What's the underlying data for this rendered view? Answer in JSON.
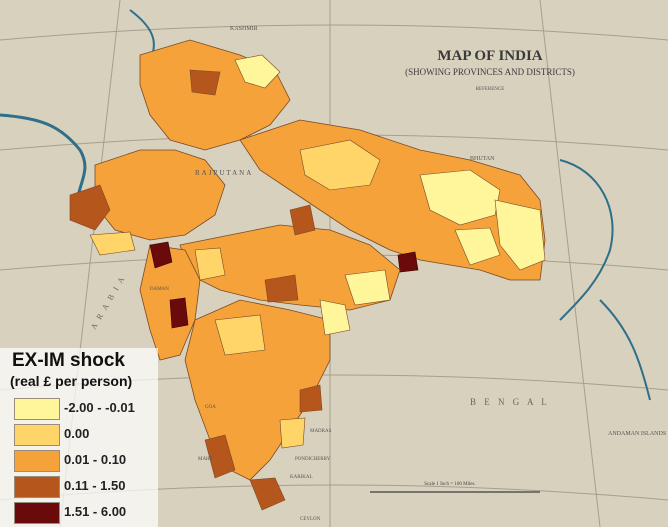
{
  "map": {
    "title": "MAP OF INDIA",
    "subtitle": "(SHOWING PROVINCES AND DISTRICTS)",
    "reference_label": "REFERENCE",
    "scale_text": "Scale 1 Inch = 100 Miles.",
    "bay_label": "B E N G A L",
    "sea_label": "A R A B I A",
    "islands_label": "ANDAMAN ISLANDS",
    "places": [
      "KASHMIR",
      "RAJPUTANA",
      "BHUTAN",
      "DAMAN",
      "GOA",
      "MADRAS",
      "PONDICHERRY",
      "KARIKAL",
      "CEYLON",
      "MAHE"
    ]
  },
  "legend": {
    "title": "EX-IM shock",
    "subtitle": "(real £ per person)",
    "items": [
      {
        "label": "-2.00 - -0.01",
        "color": "#fff59a"
      },
      {
        "label": "0.00",
        "color": "#ffd56a"
      },
      {
        "label": "0.01 - 0.10",
        "color": "#f5a23a"
      },
      {
        "label": "0.11 - 1.50",
        "color": "#b5561c"
      },
      {
        "label": "1.51 - 6.00",
        "color": "#6a0a0a"
      }
    ]
  },
  "colors": {
    "paper": "#d9d2bf",
    "sea_line": "#2e6f8a",
    "grid": "#a79f8e"
  }
}
